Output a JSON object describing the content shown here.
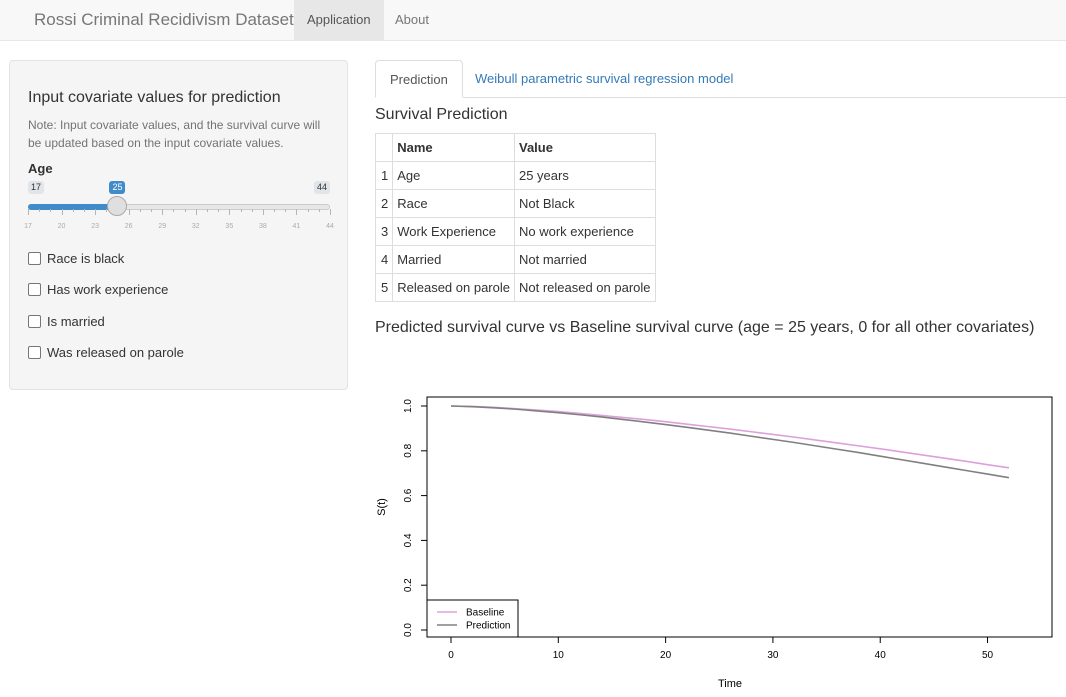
{
  "navbar": {
    "brand": "Rossi Criminal Recidivism Dataset",
    "items": [
      "Application",
      "About"
    ],
    "active": "Application"
  },
  "sidebar": {
    "title": "Input covariate values for prediction",
    "note": "Note: Input covariate values, and the survival curve will be updated based on the input covariate values.",
    "age": {
      "label": "Age",
      "min": 17,
      "max": 44,
      "value": 25,
      "tick_labels": [
        "17",
        "20",
        "23",
        "26",
        "29",
        "32",
        "35",
        "38",
        "41",
        "44"
      ]
    },
    "checkboxes": [
      {
        "label": "Race is black",
        "checked": false
      },
      {
        "label": "Has work experience",
        "checked": false
      },
      {
        "label": "Is married",
        "checked": false
      },
      {
        "label": "Was released on parole",
        "checked": false
      }
    ]
  },
  "tabs": [
    {
      "label": "Prediction",
      "active": true
    },
    {
      "label": "Weibull parametric survival regression model",
      "active": false
    }
  ],
  "prediction": {
    "title": "Survival Prediction",
    "columns": [
      "Name",
      "Value"
    ],
    "rows": [
      {
        "idx": "1",
        "name": "Age",
        "value": "25 years"
      },
      {
        "idx": "2",
        "name": "Race",
        "value": "Not Black"
      },
      {
        "idx": "3",
        "name": "Work Experience",
        "value": "No work experience"
      },
      {
        "idx": "4",
        "name": "Married",
        "value": "Not married"
      },
      {
        "idx": "5",
        "name": "Released on parole",
        "value": "Not released on parole"
      }
    ]
  },
  "plot_title": "Predicted survival curve vs Baseline survival curve (age = 25 years, 0 for all other covariates)",
  "colors": {
    "accent": "#428bca",
    "link": "#337ab7",
    "baseline": "#dda0dd",
    "prediction": "#808080"
  },
  "chart_data": {
    "type": "line",
    "title": "",
    "xlabel": "Time",
    "ylabel": "S(t)",
    "xlim": [
      0,
      52
    ],
    "ylim": [
      0,
      1
    ],
    "x_ticks": [
      "0",
      "10",
      "20",
      "30",
      "40",
      "50"
    ],
    "y_ticks": [
      "0.0",
      "0.2",
      "0.4",
      "0.6",
      "0.8",
      "1.0"
    ],
    "legend_position": "bottom-left",
    "series": [
      {
        "name": "Baseline",
        "color": "#dda0dd",
        "x": [
          0,
          2,
          4,
          6,
          8,
          10,
          12,
          14,
          16,
          18,
          20,
          22,
          24,
          26,
          28,
          30,
          32,
          34,
          36,
          38,
          40,
          42,
          44,
          46,
          48,
          50,
          52
        ],
        "y": [
          1.0,
          0.998,
          0.994,
          0.988,
          0.982,
          0.975,
          0.967,
          0.958,
          0.949,
          0.94,
          0.93,
          0.919,
          0.908,
          0.897,
          0.885,
          0.873,
          0.861,
          0.848,
          0.835,
          0.822,
          0.809,
          0.795,
          0.781,
          0.767,
          0.753,
          0.738,
          0.724
        ]
      },
      {
        "name": "Prediction",
        "color": "#808080",
        "x": [
          0,
          2,
          4,
          6,
          8,
          10,
          12,
          14,
          16,
          18,
          20,
          22,
          24,
          26,
          28,
          30,
          32,
          34,
          36,
          38,
          40,
          42,
          44,
          46,
          48,
          50,
          52
        ],
        "y": [
          1.0,
          0.997,
          0.992,
          0.986,
          0.978,
          0.97,
          0.961,
          0.951,
          0.94,
          0.929,
          0.917,
          0.905,
          0.892,
          0.879,
          0.865,
          0.851,
          0.837,
          0.822,
          0.807,
          0.792,
          0.776,
          0.76,
          0.744,
          0.728,
          0.712,
          0.696,
          0.68
        ]
      }
    ]
  }
}
